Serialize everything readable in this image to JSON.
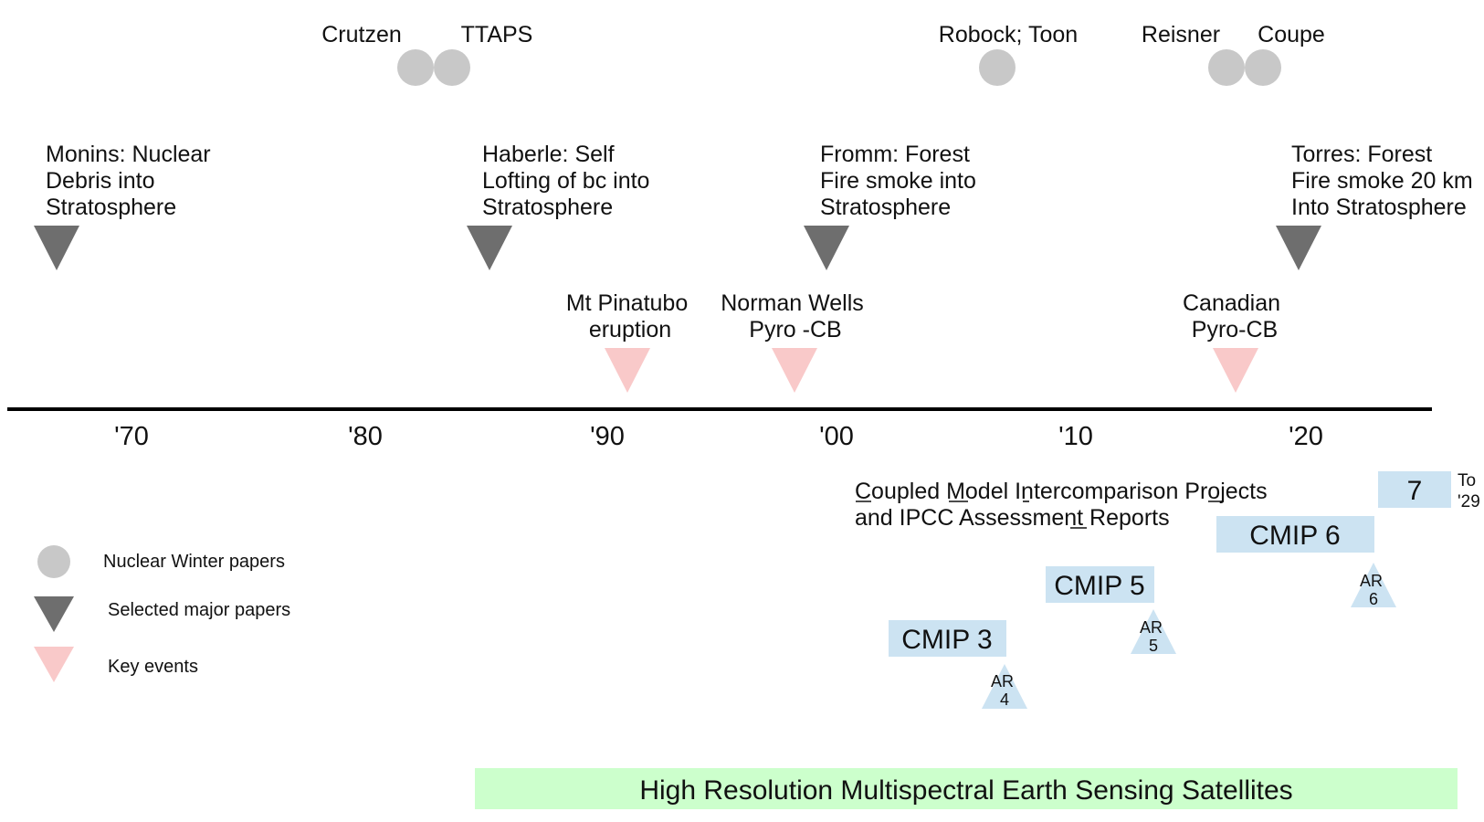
{
  "nuclear_winter_papers": [
    {
      "label": "Crutzen"
    },
    {
      "label": "TTAPS"
    },
    {
      "label": "Robock; Toon"
    },
    {
      "label": "Reisner"
    },
    {
      "label": "Coupe"
    }
  ],
  "selected_papers": [
    {
      "lines": [
        "Monins:  Nuclear",
        "Debris into",
        "Stratosphere"
      ]
    },
    {
      "lines": [
        "Haberle:  Self",
        "Lofting of bc into",
        "Stratosphere"
      ]
    },
    {
      "lines": [
        "Fromm:  Forest",
        "Fire smoke into",
        "Stratosphere"
      ]
    },
    {
      "lines": [
        "Torres:  Forest",
        "Fire smoke 20 km",
        "Into Stratosphere"
      ]
    }
  ],
  "key_events": [
    {
      "lines": [
        "Mt Pinatubo",
        "eruption"
      ]
    },
    {
      "lines": [
        "Norman Wells",
        "Pyro -CB"
      ]
    },
    {
      "lines": [
        "Canadian",
        "Pyro-CB"
      ]
    }
  ],
  "axis_ticks": [
    "'70",
    "'80",
    "'90",
    "'00",
    "'10",
    "'20"
  ],
  "cmip": {
    "title_line1": "Coupled Model Intercomparison Projects",
    "title_line2": "and IPCC Assessment Reports",
    "projects": [
      "CMIP 3",
      "CMIP 5",
      "CMIP 6",
      "7"
    ],
    "cmip7_note": [
      "To",
      "'29"
    ],
    "reports": [
      {
        "lines": [
          "AR",
          "4"
        ]
      },
      {
        "lines": [
          "AR",
          "5"
        ]
      },
      {
        "lines": [
          "AR",
          "6"
        ]
      }
    ]
  },
  "legend": [
    {
      "label": "Nuclear Winter papers",
      "icon": "gray-circle"
    },
    {
      "label": "Selected major papers",
      "icon": "dark-gray-down-triangle"
    },
    {
      "label": "Key events",
      "icon": "pink-down-triangle"
    }
  ],
  "satellites_label": "High Resolution Multispectral Earth Sensing Satellites",
  "colors": {
    "nuclear_winter": "#c8c8c8",
    "selected_paper": "#6e6e6e",
    "key_event": "#f9c9c9",
    "cmip": "#cce3f2",
    "satellite_bar": "#ccffcc",
    "axis": "#000000"
  }
}
